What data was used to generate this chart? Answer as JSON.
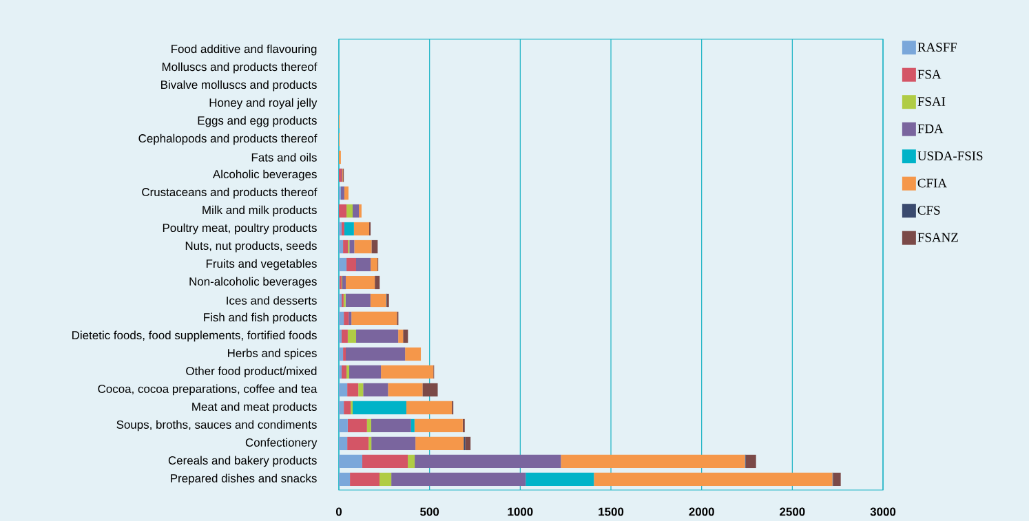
{
  "chart_data": {
    "type": "bar",
    "orientation": "horizontal",
    "stacked": true,
    "grid": "x",
    "legend": "right",
    "categories": [
      "Food additive and flavouring",
      "Molluscs and products thereof",
      "Bivalve molluscs and products",
      "Honey and royal jelly",
      "Eggs and egg products",
      "Cephalopods and products thereof",
      "Fats and oils",
      "Alcoholic beverages",
      "Crustaceans and products thereof",
      "Milk and milk products",
      "Poultry meat, poultry products",
      "Nuts, nut products, seeds",
      "Fruits and vegetables",
      "Non-alcoholic beverages",
      "Ices and desserts",
      "Fish and fish products",
      "Dietetic foods, food supplements, fortified foods",
      "Herbs and spices",
      "Other food product/mixed",
      "Cocoa, cocoa preparations, coffee and tea",
      "Meat and meat products",
      "Soups, broths, sauces and condiments",
      "Confectionery",
      "Cereals and bakery products",
      "Prepared dishes and snacks"
    ],
    "xlim": [
      0,
      3000
    ],
    "xticks": [
      0,
      500,
      1000,
      1500,
      2000,
      2500,
      3000
    ],
    "series": [
      {
        "name": "RASFF",
        "color": "#7aa7da",
        "values": [
          0,
          0,
          0,
          2,
          0,
          0,
          0,
          0,
          11,
          0,
          15,
          23,
          42,
          4,
          15,
          27,
          15,
          23,
          15,
          46,
          27,
          49,
          46,
          129,
          61
        ]
      },
      {
        "name": "FSA",
        "color": "#d45566",
        "values": [
          0,
          0,
          0,
          0,
          0,
          0,
          0,
          15,
          0,
          42,
          15,
          27,
          53,
          11,
          11,
          27,
          34,
          15,
          27,
          61,
          38,
          106,
          118,
          251,
          163
        ]
      },
      {
        "name": "FSAI",
        "color": "#b0cc45",
        "values": [
          0,
          0,
          0,
          0,
          0,
          0,
          0,
          0,
          0,
          34,
          0,
          8,
          0,
          4,
          11,
          0,
          46,
          0,
          15,
          27,
          11,
          23,
          15,
          38,
          65
        ]
      },
      {
        "name": "FDA",
        "color": "#7a659e",
        "values": [
          0,
          0,
          0,
          0,
          0,
          0,
          0,
          4,
          19,
          34,
          0,
          27,
          80,
          19,
          137,
          15,
          232,
          327,
          175,
          137,
          0,
          220,
          243,
          806,
          741
        ]
      },
      {
        "name": "USDA-FSIS",
        "color": "#00b3c8",
        "values": [
          0,
          0,
          0,
          0,
          0,
          0,
          0,
          0,
          0,
          0,
          53,
          0,
          0,
          0,
          0,
          0,
          0,
          0,
          0,
          0,
          296,
          19,
          0,
          0,
          376
        ]
      },
      {
        "name": "CFIA",
        "color": "#f5974a",
        "values": [
          0,
          0,
          0,
          0,
          4,
          4,
          11,
          4,
          23,
          15,
          84,
          95,
          38,
          160,
          87,
          251,
          27,
          87,
          289,
          190,
          251,
          266,
          266,
          1015,
          1315
        ]
      },
      {
        "name": "CFS",
        "color": "#3a4a6e",
        "values": [
          0,
          0,
          0,
          0,
          0,
          0,
          0,
          0,
          0,
          0,
          0,
          0,
          0,
          0,
          4,
          0,
          0,
          0,
          0,
          0,
          0,
          0,
          8,
          4,
          4
        ]
      },
      {
        "name": "FSANZ",
        "color": "#7b4a48",
        "values": [
          0,
          0,
          0,
          0,
          0,
          0,
          0,
          4,
          0,
          0,
          8,
          34,
          4,
          27,
          11,
          8,
          27,
          0,
          4,
          84,
          8,
          11,
          30,
          57,
          42
        ]
      }
    ]
  }
}
